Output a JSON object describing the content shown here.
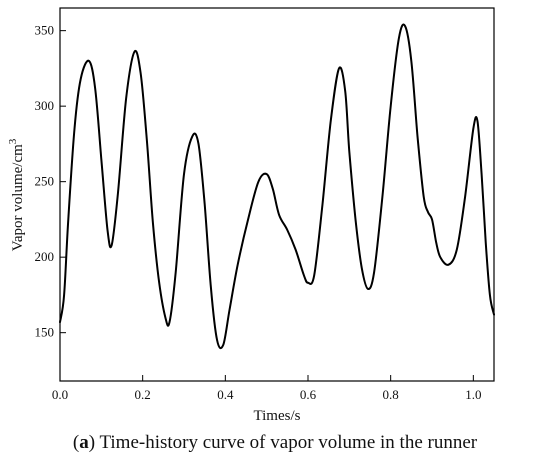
{
  "chart_data": {
    "type": "line",
    "xlabel": "Times/s",
    "ylabel": "Vapor volume/cm",
    "ylabel_superscript": "3",
    "xlim": [
      0.0,
      1.05
    ],
    "ylim": [
      118,
      365
    ],
    "x_ticks": [
      0.0,
      0.2,
      0.4,
      0.6,
      0.8,
      1.0
    ],
    "x_tick_labels": [
      "0.0",
      "0.2",
      "0.4",
      "0.6",
      "0.8",
      "1.0"
    ],
    "y_ticks": [
      150,
      200,
      250,
      300,
      350
    ],
    "y_tick_labels": [
      "150",
      "200",
      "250",
      "300",
      "350"
    ],
    "grid": false,
    "series": [
      {
        "x": [
          0.0,
          0.01,
          0.02,
          0.035,
          0.05,
          0.07,
          0.085,
          0.1,
          0.115,
          0.125,
          0.14,
          0.16,
          0.18,
          0.195,
          0.21,
          0.225,
          0.24,
          0.255,
          0.265,
          0.28,
          0.3,
          0.32,
          0.335,
          0.35,
          0.365,
          0.38,
          0.395,
          0.41,
          0.43,
          0.455,
          0.48,
          0.5,
          0.515,
          0.53,
          0.55,
          0.57,
          0.59,
          0.6,
          0.615,
          0.635,
          0.655,
          0.675,
          0.69,
          0.7,
          0.715,
          0.73,
          0.745,
          0.76,
          0.78,
          0.8,
          0.82,
          0.835,
          0.85,
          0.865,
          0.88,
          0.89,
          0.9,
          0.91,
          0.92,
          0.94,
          0.96,
          0.98,
          1.0,
          1.01,
          1.02,
          1.03,
          1.04,
          1.05
        ],
        "y": [
          157,
          175,
          225,
          285,
          318,
          330,
          312,
          265,
          218,
          208,
          242,
          305,
          336,
          322,
          278,
          222,
          183,
          160,
          157,
          190,
          255,
          280,
          275,
          235,
          180,
          145,
          142,
          165,
          195,
          225,
          250,
          255,
          245,
          228,
          218,
          205,
          188,
          183,
          188,
          235,
          290,
          325,
          310,
          270,
          225,
          193,
          179,
          190,
          240,
          300,
          345,
          353,
          330,
          280,
          240,
          230,
          225,
          210,
          200,
          195,
          205,
          240,
          285,
          290,
          255,
          210,
          175,
          162
        ]
      }
    ]
  },
  "caption": {
    "label": "a",
    "text": "Time-history curve of vapor volume in the runner"
  }
}
